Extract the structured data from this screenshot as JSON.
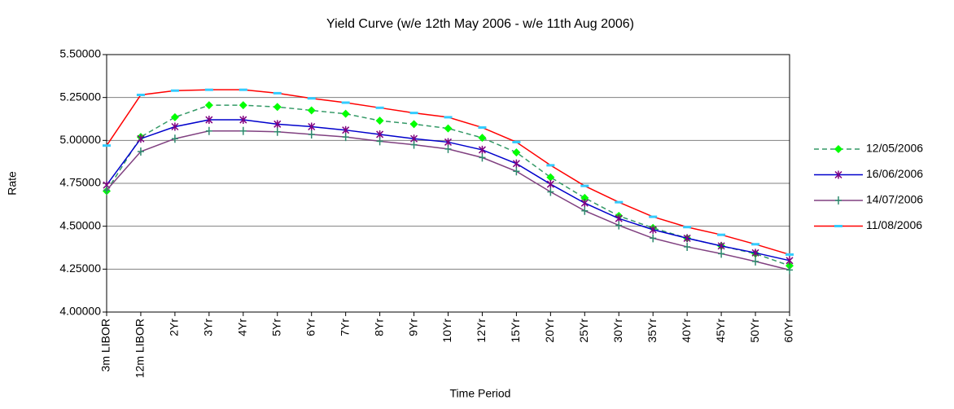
{
  "chart_data": {
    "type": "line",
    "title": "Yield Curve (w/e 12th May 2006 - w/e 11th Aug 2006)",
    "x_label": "Time Period",
    "y_label": "Rate",
    "categories": [
      "3m LIBOR",
      "12m LIBOR",
      "2Yr",
      "3Yr",
      "4Yr",
      "5Yr",
      "6Yr",
      "7Yr",
      "8Yr",
      "9Yr",
      "10Yr",
      "12Yr",
      "15Yr",
      "20Yr",
      "25Yr",
      "30Yr",
      "35Yr",
      "40Yr",
      "45Yr",
      "50Yr",
      "60Yr"
    ],
    "ylim": [
      4.0,
      5.5
    ],
    "yticks": [
      {
        "value": 4.0,
        "label": "4.00000"
      },
      {
        "value": 4.25,
        "label": "4.25000"
      },
      {
        "value": 4.5,
        "label": "4.50000"
      },
      {
        "value": 4.75,
        "label": "4.75000"
      },
      {
        "value": 5.0,
        "label": "5.00000"
      },
      {
        "value": 5.25,
        "label": "5.25000"
      },
      {
        "value": 5.5,
        "label": "5.50000"
      }
    ],
    "grid": true,
    "legend": "right",
    "series": [
      {
        "name": "12/05/2006",
        "color": "#339966",
        "marker": "diamond",
        "marker_color": "#00ff00",
        "dashed": true,
        "values": [
          4.705,
          5.02,
          5.135,
          5.205,
          5.205,
          5.195,
          5.175,
          5.155,
          5.115,
          5.095,
          5.07,
          5.015,
          4.93,
          4.785,
          4.665,
          4.56,
          4.49,
          4.43,
          4.385,
          4.34,
          4.27
        ]
      },
      {
        "name": "16/06/2006",
        "color": "#0000cc",
        "marker": "star",
        "marker_color": "#800080",
        "dashed": false,
        "values": [
          4.74,
          5.01,
          5.08,
          5.12,
          5.12,
          5.095,
          5.08,
          5.06,
          5.035,
          5.01,
          4.99,
          4.945,
          4.865,
          4.745,
          4.635,
          4.545,
          4.48,
          4.43,
          4.385,
          4.345,
          4.3
        ]
      },
      {
        "name": "14/07/2006",
        "color": "#804080",
        "marker": "plus",
        "marker_color": "#2e8b6e",
        "dashed": false,
        "values": [
          4.71,
          4.935,
          5.01,
          5.055,
          5.055,
          5.05,
          5.035,
          5.02,
          4.995,
          4.975,
          4.95,
          4.9,
          4.82,
          4.7,
          4.59,
          4.505,
          4.43,
          4.38,
          4.34,
          4.295,
          4.245
        ]
      },
      {
        "name": "11/08/2006",
        "color": "#ff0000",
        "marker": "dash",
        "marker_color": "#33ccff",
        "dashed": false,
        "values": [
          4.97,
          5.265,
          5.29,
          5.295,
          5.295,
          5.275,
          5.245,
          5.22,
          5.19,
          5.16,
          5.135,
          5.075,
          4.99,
          4.855,
          4.735,
          4.64,
          4.555,
          4.495,
          4.45,
          4.395,
          4.335
        ]
      }
    ]
  }
}
